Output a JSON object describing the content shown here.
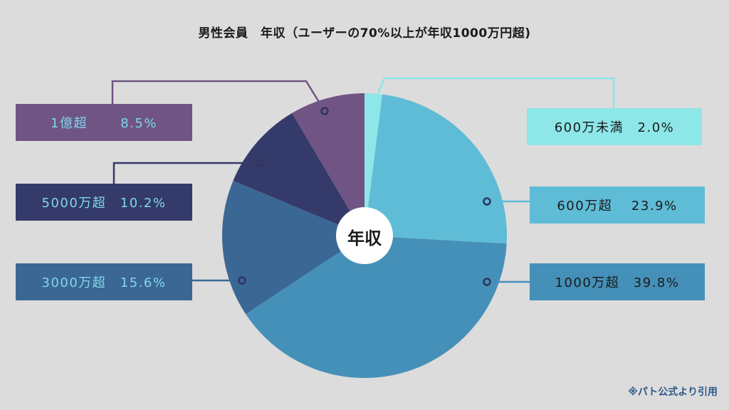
{
  "chart_data": {
    "type": "pie",
    "title": "男性会員　年収（ユーザーの70%以上が年収1000万円超)",
    "center_label": "年収",
    "slices": [
      {
        "label": "600万未満",
        "value": 2.0,
        "display": "600万未満　2.0%",
        "color": "#8de6e8",
        "text_color": "#1a1a1a"
      },
      {
        "label": "600万超",
        "value": 23.9,
        "display": "600万超　 23.9%",
        "color": "#5fbcd6",
        "text_color": "#1a1a1a"
      },
      {
        "label": "1000万超",
        "value": 39.8,
        "display": "1000万超　39.8%",
        "color": "#4590b8",
        "text_color": "#1a1a1a"
      },
      {
        "label": "3000万超",
        "value": 15.6,
        "display": "3000万超　15.6%",
        "color": "#3b6794",
        "text_color": "#7fd8ea"
      },
      {
        "label": "5000万超",
        "value": 10.2,
        "display": "5000万超　10.2%",
        "color": "#343a6a",
        "text_color": "#7fd8ea"
      },
      {
        "label": "1億超",
        "value": 8.5,
        "display": "1億超　　 8.5%",
        "color": "#6f5484",
        "text_color": "#7fd8ea"
      }
    ]
  },
  "footer": {
    "source": "※パト公式より引用"
  }
}
